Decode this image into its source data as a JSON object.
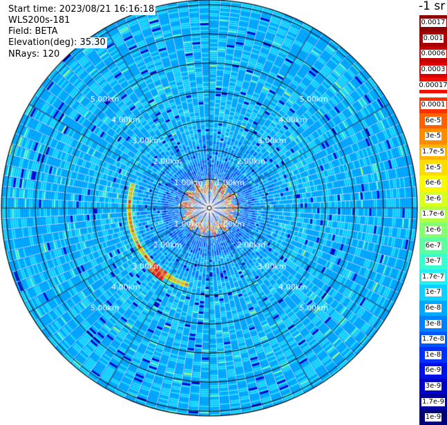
{
  "info": {
    "start_time": "Start time: 2023/08/21 16:16:18",
    "instrument": "WLS200s-181",
    "field": "Field: BETA",
    "elevation": "Elevation(deg): 35.30",
    "nrays": "NRays: 120"
  },
  "unit_label": "-1 sr",
  "range_labels": [
    "1.00km",
    "2.00km",
    "3.00km",
    "4.00km",
    "5.00km"
  ],
  "legend": {
    "upper": [
      {
        "label": "0.0017",
        "color": "#8b0000"
      },
      {
        "label": "0.001",
        "color": "#a80000"
      },
      {
        "label": "0.0006",
        "color": "#c40000"
      },
      {
        "label": "0.0003",
        "color": "#dc0000"
      },
      {
        "label": "0.00017",
        "color": "#f01000"
      }
    ],
    "lower": [
      {
        "label": "0.0001",
        "color": "#ff3000"
      },
      {
        "label": "6e-5",
        "color": "#ff6000"
      },
      {
        "label": "3e-5",
        "color": "#ff8c00"
      },
      {
        "label": "1.7e-5",
        "color": "#ffb400"
      },
      {
        "label": "1e-5",
        "color": "#ffdc00"
      },
      {
        "label": "6e-6",
        "color": "#f8f800"
      },
      {
        "label": "3e-6",
        "color": "#d8ff20"
      },
      {
        "label": "1.7e-6",
        "color": "#b0ff40"
      },
      {
        "label": "1e-6",
        "color": "#84ff70"
      },
      {
        "label": "6e-7",
        "color": "#5cffa0"
      },
      {
        "label": "3e-7",
        "color": "#38ffd0"
      },
      {
        "label": "1.7e-7",
        "color": "#20f0f0"
      },
      {
        "label": "1e-7",
        "color": "#10d0ff"
      },
      {
        "label": "6e-8",
        "color": "#00a8ff"
      },
      {
        "label": "3e-8",
        "color": "#0080ff"
      },
      {
        "label": "1.7e-8",
        "color": "#0058ff"
      },
      {
        "label": "1e-8",
        "color": "#0030ff"
      },
      {
        "label": "6e-9",
        "color": "#0010e8"
      },
      {
        "label": "3e-9",
        "color": "#0000c8"
      },
      {
        "label": "1.7e-9",
        "color": "#0000a0"
      },
      {
        "label": "1e-9",
        "color": "#000078"
      }
    ]
  }
}
